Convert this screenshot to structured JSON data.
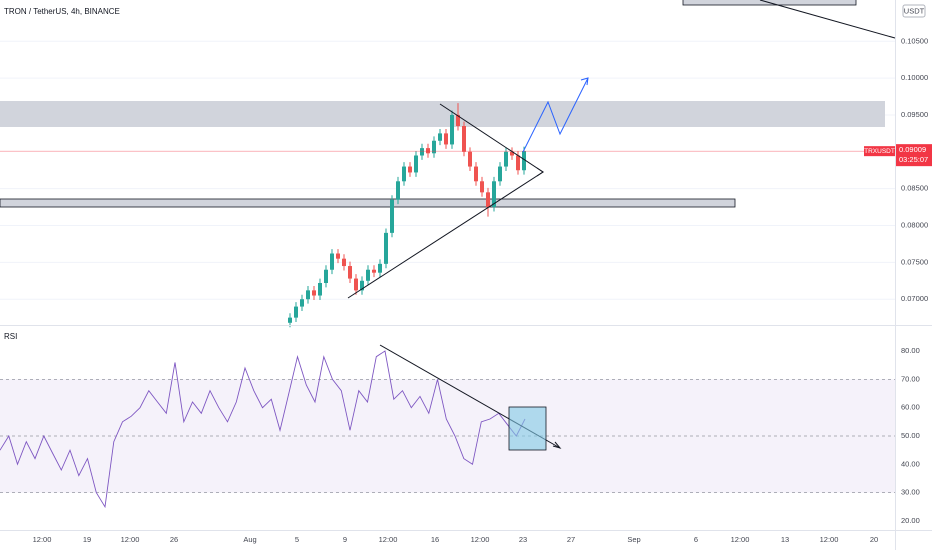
{
  "chart_data": [
    {
      "type": "candlestick",
      "title": "TRON / TetherUS, 4h, BINANCE",
      "unit": "USDT",
      "open": [
        0.0668,
        0.0675,
        0.069,
        0.07,
        0.0712,
        0.0705,
        0.0722,
        0.074,
        0.0762,
        0.0755,
        0.0745,
        0.0728,
        0.0712,
        0.0725,
        0.074,
        0.0736,
        0.0748,
        0.079,
        0.0835,
        0.086,
        0.088,
        0.0872,
        0.0895,
        0.0905,
        0.0898,
        0.0915,
        0.0925,
        0.091,
        0.095,
        0.0935,
        0.09,
        0.088,
        0.086,
        0.0845,
        0.0825,
        0.086,
        0.088,
        0.09,
        0.0895,
        0.0875
      ],
      "high": [
        0.0681,
        0.0696,
        0.0706,
        0.0718,
        0.0718,
        0.0728,
        0.0746,
        0.0768,
        0.0768,
        0.0761,
        0.0751,
        0.0734,
        0.0731,
        0.0746,
        0.0746,
        0.0754,
        0.0796,
        0.0841,
        0.0866,
        0.0886,
        0.0886,
        0.0901,
        0.0911,
        0.0911,
        0.0921,
        0.0931,
        0.0931,
        0.0956,
        0.0966,
        0.0941,
        0.0906,
        0.0886,
        0.0866,
        0.0851,
        0.0866,
        0.0886,
        0.0906,
        0.0906,
        0.0901,
        0.0907
      ],
      "low": [
        0.0662,
        0.0669,
        0.0684,
        0.0694,
        0.0699,
        0.0699,
        0.0716,
        0.0734,
        0.0749,
        0.0739,
        0.0722,
        0.0706,
        0.0706,
        0.0719,
        0.073,
        0.073,
        0.0742,
        0.0784,
        0.0829,
        0.0854,
        0.0866,
        0.0866,
        0.0889,
        0.0892,
        0.0892,
        0.0909,
        0.0904,
        0.0904,
        0.0929,
        0.0894,
        0.0874,
        0.0854,
        0.0839,
        0.0812,
        0.0819,
        0.0854,
        0.0874,
        0.0889,
        0.0869,
        0.0869
      ],
      "close": [
        0.0675,
        0.069,
        0.07,
        0.0712,
        0.0705,
        0.0722,
        0.074,
        0.0762,
        0.0755,
        0.0745,
        0.0728,
        0.0712,
        0.0725,
        0.074,
        0.0736,
        0.0748,
        0.079,
        0.0835,
        0.086,
        0.088,
        0.0872,
        0.0895,
        0.0905,
        0.0898,
        0.0915,
        0.0925,
        0.091,
        0.095,
        0.0935,
        0.09,
        0.088,
        0.086,
        0.0845,
        0.0825,
        0.086,
        0.088,
        0.09,
        0.0895,
        0.0875,
        0.0901
      ],
      "up_color": "#26a69a",
      "down_color": "#ef5350",
      "ylim": [
        0.0665,
        0.1106
      ],
      "yticks": [
        {
          "value": 0.105,
          "label": "0.10500"
        },
        {
          "value": 0.1,
          "label": "0.10000"
        },
        {
          "value": 0.095,
          "label": "0.09500"
        },
        {
          "value": 0.085,
          "label": "0.08500"
        },
        {
          "value": 0.08,
          "label": "0.08000"
        },
        {
          "value": 0.075,
          "label": "0.07500"
        },
        {
          "value": 0.07,
          "label": "0.07000"
        }
      ],
      "grid": true,
      "last": {
        "symbol": "TRXUSDT",
        "price": {
          "value": 0.09009,
          "label": "0.09009"
        },
        "countdown": "03:25:07",
        "color": "#f23645"
      }
    },
    {
      "type": "line",
      "title": "RSI",
      "color": "#7e57c2",
      "values": [
        45,
        50,
        40,
        48,
        42,
        50,
        44,
        38,
        45,
        36,
        42,
        30,
        25,
        48,
        55,
        57,
        60,
        66,
        62,
        58,
        76,
        55,
        62,
        58,
        66,
        60,
        55,
        62,
        74,
        66,
        60,
        63,
        52,
        65,
        78,
        68,
        62,
        78,
        70,
        66,
        52,
        66,
        62,
        78,
        80,
        63,
        66,
        60,
        64,
        58,
        70,
        56,
        50,
        42,
        40,
        55,
        56,
        58,
        54,
        50,
        56
      ],
      "ylim": [
        16.8,
        89.2
      ],
      "yticks": [
        {
          "value": 80,
          "label": "80.00"
        },
        {
          "value": 70,
          "label": "70.00"
        },
        {
          "value": 60,
          "label": "60.00"
        },
        {
          "value": 50,
          "label": "50.00"
        },
        {
          "value": 40,
          "label": "40.00"
        },
        {
          "value": 30,
          "label": "30.00"
        },
        {
          "value": 20,
          "label": "20.00"
        }
      ],
      "levels": [
        70,
        50,
        30
      ],
      "band_color": "#7e57c2"
    }
  ],
  "xticks": [
    "12:00",
    "19",
    "12:00",
    "26",
    "Aug",
    "5",
    "9",
    "12:00",
    "16",
    "12:00",
    "23",
    "27",
    "Sep",
    "6",
    "12:00",
    "13",
    "12:00",
    "20"
  ]
}
